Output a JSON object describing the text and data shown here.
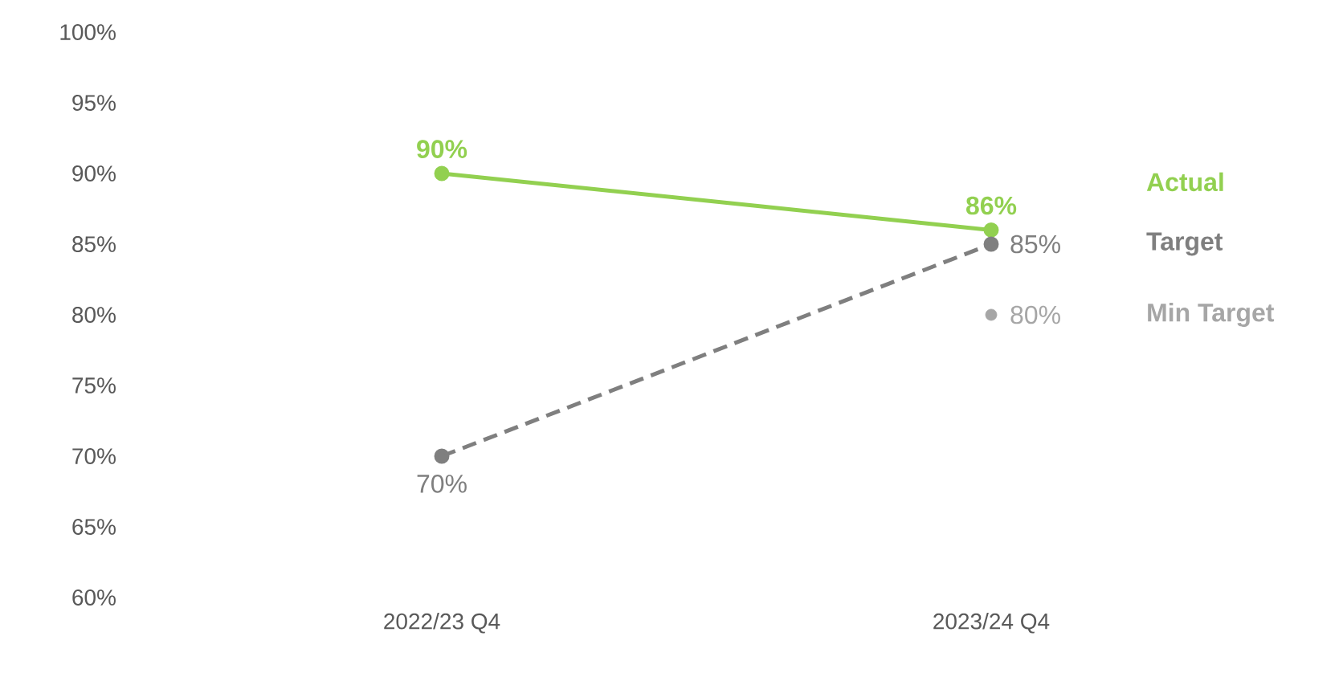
{
  "chart_data": {
    "type": "line",
    "categories": [
      "2022/23 Q4",
      "2023/24 Q4"
    ],
    "ylim": [
      60,
      100
    ],
    "yticks": [
      {
        "value": 60,
        "label": "60%"
      },
      {
        "value": 65,
        "label": "65%"
      },
      {
        "value": 70,
        "label": "70%"
      },
      {
        "value": 75,
        "label": "75%"
      },
      {
        "value": 80,
        "label": "80%"
      },
      {
        "value": 85,
        "label": "85%"
      },
      {
        "value": 90,
        "label": "90%"
      },
      {
        "value": 95,
        "label": "95%"
      },
      {
        "value": 100,
        "label": "100%"
      }
    ],
    "series": [
      {
        "name": "Actual",
        "color": "#92d050",
        "values": [
          90,
          86
        ],
        "value_labels": [
          "90%",
          "86%"
        ],
        "line_style": "solid"
      },
      {
        "name": "Target",
        "color": "#7f7f7f",
        "values": [
          70,
          85
        ],
        "value_labels": [
          "70%",
          "85%"
        ],
        "line_style": "dashed"
      },
      {
        "name": "Min Target",
        "color": "#a6a6a6",
        "type": "scatter",
        "values": [
          null,
          80
        ],
        "value_labels": [
          null,
          "80%"
        ]
      }
    ],
    "marker": "circle",
    "grid": false,
    "legend": false
  }
}
